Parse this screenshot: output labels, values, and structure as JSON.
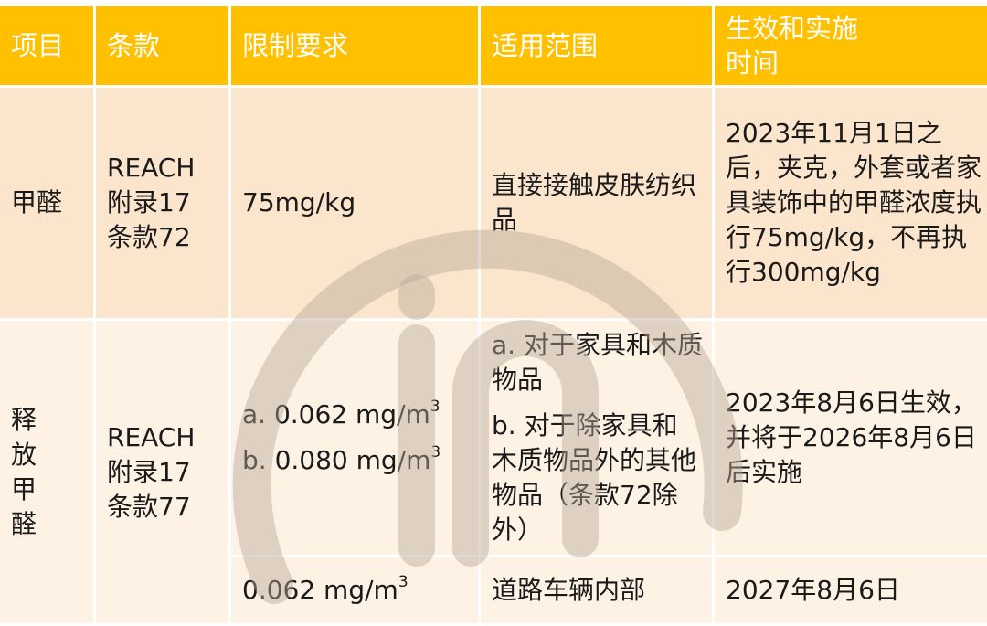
{
  "header": {
    "item": "项目",
    "clause": "条款",
    "limit": "限制要求",
    "scope": "适用范围",
    "effective": "生效和实施时间"
  },
  "rows": [
    {
      "item": "甲醛",
      "clause": [
        "REACH",
        "附录17",
        "条款72"
      ],
      "limit": "75mg/kg",
      "scope": "直接接触皮肤纺织品",
      "effective": "2023年11月1日之后，夹克，外套或者家具装饰中的甲醛浓度执行75mg/kg，不再执行300mg/kg"
    },
    {
      "item": "释放甲醛",
      "clause": [
        "REACH",
        "附录17",
        "条款77"
      ],
      "limit_a": "a. 0.062 mg/m",
      "limit_b": "b. 0.080 mg/m",
      "sup": "3",
      "scope_a": "a. 对于家具和木质物品",
      "scope_b": "b. 对于除家具和木质物品外的其他物品（条款72除外）",
      "effective": "2023年8月6日生效，并将于2026年8月6日后实施"
    },
    {
      "limit": "0.062 mg/m",
      "sup": "3",
      "scope": "道路车辆内部",
      "effective": "2027年8月6日"
    }
  ],
  "colors": {
    "header": "#FFC000",
    "row1": "#FCE5CD",
    "row2": "#FEF2E4",
    "watermark": "#C8B8A8"
  }
}
